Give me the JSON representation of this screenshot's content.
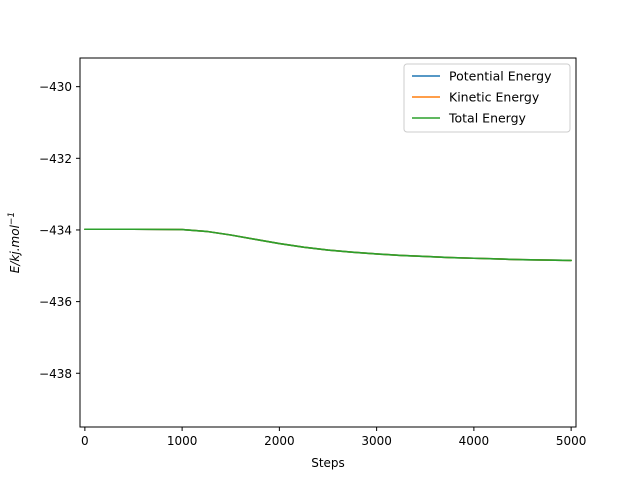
{
  "chart_data": {
    "type": "line",
    "title": "",
    "xlabel": "Steps",
    "ylabel": "E/kj.mol",
    "ylabel_superscript": "−1",
    "xlim": [
      -50,
      5050
    ],
    "ylim": [
      -439.5,
      -429.2
    ],
    "xticks": [
      0,
      1000,
      2000,
      3000,
      4000,
      5000
    ],
    "xtick_labels": [
      "0",
      "1000",
      "2000",
      "3000",
      "4000",
      "5000"
    ],
    "yticks": [
      -438,
      -436,
      -434,
      -432,
      -430
    ],
    "ytick_labels": [
      "−438",
      "−436",
      "−434",
      "−432",
      "−430"
    ],
    "grid": false,
    "legend_position": "top-right",
    "x": [
      0,
      500,
      1000,
      1250,
      1500,
      1750,
      2000,
      2250,
      2500,
      2750,
      3000,
      3250,
      3500,
      3750,
      4000,
      4250,
      4500,
      4750,
      5000
    ],
    "series": [
      {
        "name": "Potential Energy",
        "color": "#1f77b4",
        "values": [
          -433.98,
          -433.98,
          -433.99,
          -434.04,
          -434.14,
          -434.26,
          -434.38,
          -434.48,
          -434.56,
          -434.62,
          -434.67,
          -434.71,
          -434.74,
          -434.77,
          -434.79,
          -434.81,
          -434.83,
          -434.84,
          -434.85
        ]
      },
      {
        "name": "Kinetic Energy",
        "color": "#ff7f0e",
        "values": [
          -433.98,
          -433.98,
          -433.99,
          -434.04,
          -434.14,
          -434.26,
          -434.38,
          -434.48,
          -434.56,
          -434.62,
          -434.67,
          -434.71,
          -434.74,
          -434.77,
          -434.79,
          -434.81,
          -434.83,
          -434.84,
          -434.85
        ]
      },
      {
        "name": "Total Energy",
        "color": "#2ca02c",
        "values": [
          -433.98,
          -433.98,
          -433.99,
          -434.04,
          -434.14,
          -434.26,
          -434.38,
          -434.48,
          -434.56,
          -434.62,
          -434.67,
          -434.71,
          -434.74,
          -434.77,
          -434.79,
          -434.81,
          -434.83,
          -434.84,
          -434.85
        ]
      }
    ]
  }
}
